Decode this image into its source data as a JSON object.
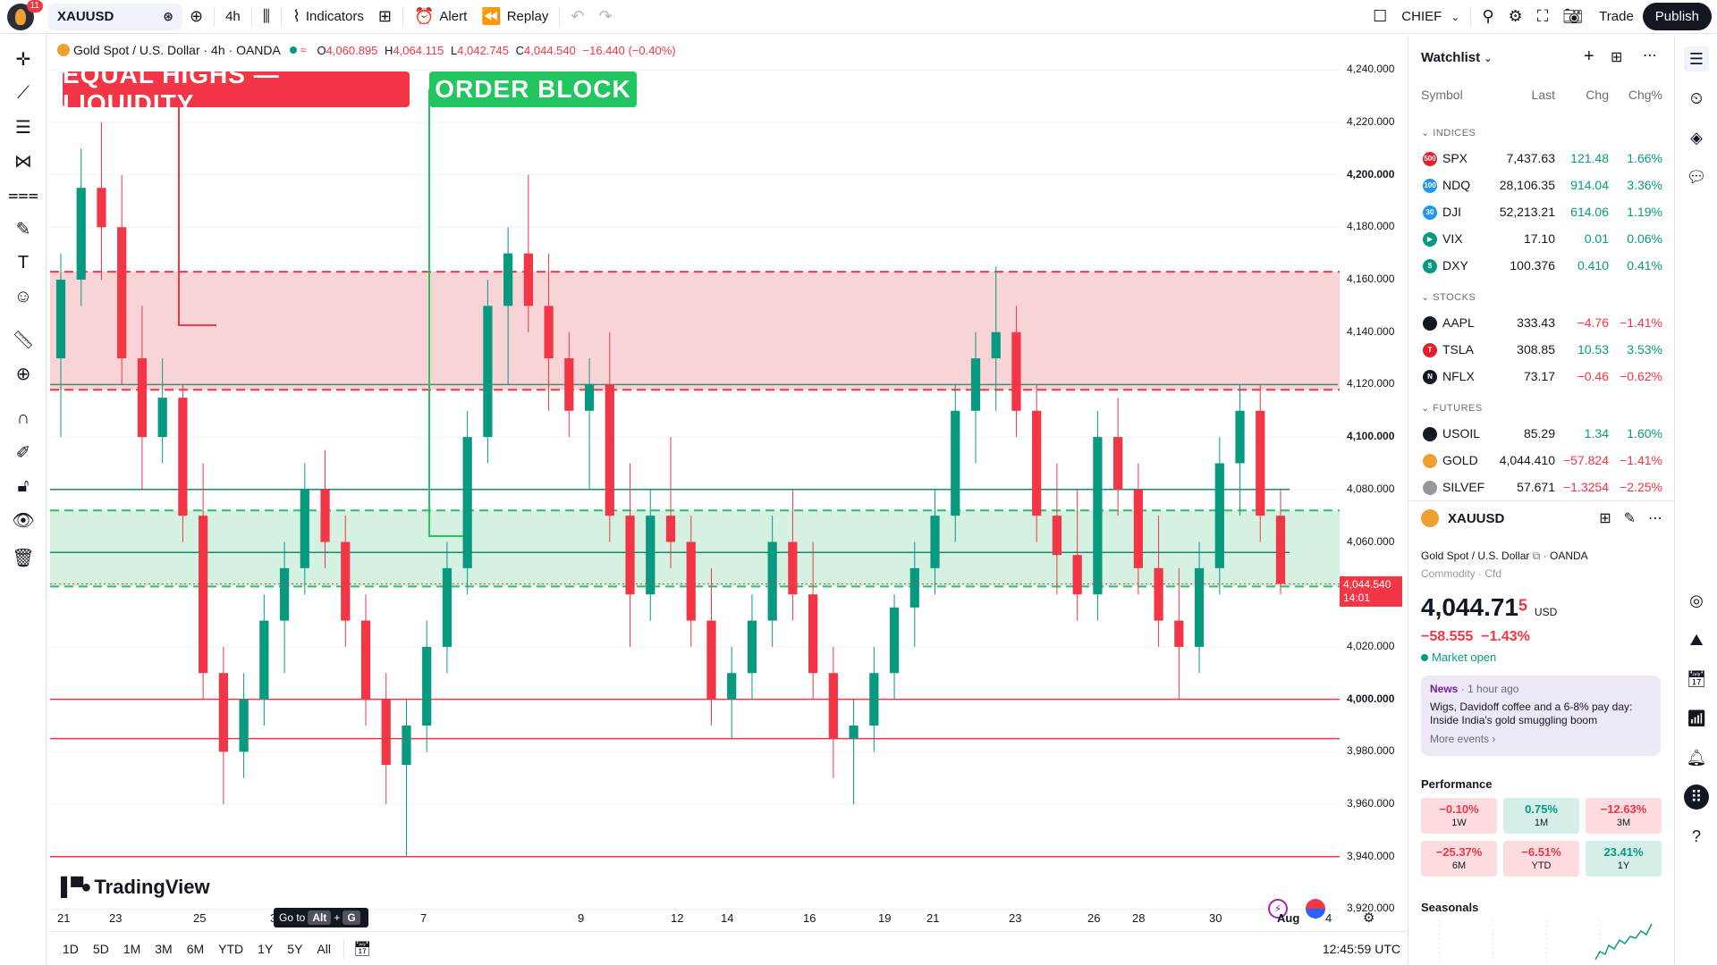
{
  "topbar": {
    "avatar_badge": "11",
    "symbol": "XAUUSD",
    "interval": "4h",
    "indicators": "Indicators",
    "alert": "Alert",
    "replay": "Replay",
    "layout_name": "CHIEF",
    "trade": "Trade",
    "publish": "Publish"
  },
  "legend": {
    "name": "Gold Spot / U.S. Dollar · 4h · OANDA",
    "o_label": "O",
    "o": "4,060.895",
    "h_label": "H",
    "h": "4,064.115",
    "l_label": "L",
    "l": "4,042.745",
    "c_label": "C",
    "c": "4,044.540",
    "change": "−16.440 (−0.40%)"
  },
  "annotations": {
    "equal_highs": "EQUAL HIGHS — LIQUIDITY",
    "order_block": "ORDER BLOCK"
  },
  "price_axis": {
    "ticks": [
      {
        "v": 4240,
        "t": "4,240.000",
        "b": false
      },
      {
        "v": 4220,
        "t": "4,220.000",
        "b": false
      },
      {
        "v": 4200,
        "t": "4,200.000",
        "b": true
      },
      {
        "v": 4180,
        "t": "4,180.000",
        "b": false
      },
      {
        "v": 4160,
        "t": "4,160.000",
        "b": false
      },
      {
        "v": 4140,
        "t": "4,140.000",
        "b": false
      },
      {
        "v": 4120,
        "t": "4,120.000",
        "b": false
      },
      {
        "v": 4100,
        "t": "4,100.000",
        "b": true
      },
      {
        "v": 4080,
        "t": "4,080.000",
        "b": false
      },
      {
        "v": 4060,
        "t": "4,060.000",
        "b": false
      },
      {
        "v": 4020,
        "t": "4,020.000",
        "b": false
      },
      {
        "v": 4000,
        "t": "4,000.000",
        "b": true
      },
      {
        "v": 3980,
        "t": "3,980.000",
        "b": false
      },
      {
        "v": 3960,
        "t": "3,960.000",
        "b": false
      },
      {
        "v": 3940,
        "t": "3,940.000",
        "b": false
      },
      {
        "v": 3920,
        "t": "3,920.000",
        "b": false
      }
    ],
    "current_price": "4,044.540",
    "countdown": "14:01"
  },
  "time_axis": {
    "ticks": [
      "21",
      "23",
      "25",
      "3",
      "7",
      "9",
      "12",
      "14",
      "16",
      "19",
      "21",
      "23",
      "26",
      "28",
      "30",
      "Aug",
      "4"
    ],
    "goto_label": "Go to",
    "goto_key1": "Alt",
    "goto_plus": "+",
    "goto_key2": "G"
  },
  "branding": "TradingView",
  "bottombar": {
    "ranges": [
      "1D",
      "5D",
      "1M",
      "3M",
      "6M",
      "YTD",
      "1Y",
      "5Y",
      "All"
    ],
    "clock": "12:45:59 UTC"
  },
  "watchlist": {
    "title": "Watchlist",
    "columns": {
      "symbol": "Symbol",
      "last": "Last",
      "chg": "Chg",
      "pct": "Chg%"
    },
    "sections": [
      {
        "name": "INDICES",
        "rows": [
          {
            "sym": "SPX",
            "icon": "500",
            "color": "#e0202c",
            "last": "7,437.63",
            "chg": "121.48",
            "pct": "1.66%",
            "up": true
          },
          {
            "sym": "NDQ",
            "icon": "100",
            "color": "#2196f3",
            "last": "28,106.35",
            "chg": "914.04",
            "pct": "3.36%",
            "up": true
          },
          {
            "sym": "DJI",
            "icon": "30",
            "color": "#2196f3",
            "last": "52,213.21",
            "chg": "614.06",
            "pct": "1.19%",
            "up": true
          },
          {
            "sym": "VIX",
            "icon": "▶",
            "color": "#089981",
            "last": "17.10",
            "chg": "0.01",
            "pct": "0.06%",
            "up": true
          },
          {
            "sym": "DXY",
            "icon": "$",
            "color": "#089981",
            "last": "100.376",
            "chg": "0.410",
            "pct": "0.41%",
            "up": true
          }
        ]
      },
      {
        "name": "STOCKS",
        "rows": [
          {
            "sym": "AAPL",
            "icon": "",
            "color": "#131722",
            "last": "333.43",
            "chg": "−4.76",
            "pct": "−1.41%",
            "up": false
          },
          {
            "sym": "TSLA",
            "icon": "T",
            "color": "#e0202c",
            "last": "308.85",
            "chg": "10.53",
            "pct": "3.53%",
            "up": true
          },
          {
            "sym": "NFLX",
            "icon": "N",
            "color": "#131722",
            "last": "73.17",
            "chg": "−0.46",
            "pct": "−0.62%",
            "up": false
          }
        ]
      },
      {
        "name": "FUTURES",
        "rows": [
          {
            "sym": "USOIL",
            "icon": "",
            "color": "#131722",
            "last": "85.29",
            "chg": "1.34",
            "pct": "1.60%",
            "up": true
          },
          {
            "sym": "GOLD",
            "icon": "",
            "color": "#f0a030",
            "last": "4,044.410",
            "chg": "−57.824",
            "pct": "−1.41%",
            "up": false
          },
          {
            "sym": "SILVEF",
            "icon": "",
            "color": "#9598a1",
            "last": "57.671",
            "chg": "−1.3254",
            "pct": "−2.25%",
            "up": false
          }
        ]
      }
    ]
  },
  "details": {
    "symbol": "XAUUSD",
    "description": "Gold Spot / U.S. Dollar",
    "exchange": "OANDA",
    "category": "Commodity · Cfd",
    "price_main": "4,044.71",
    "price_sup": "5",
    "currency": "USD",
    "change": "−58.555",
    "change_pct": "−1.43%",
    "status": "Market open",
    "news_label": "News",
    "news_time": "1 hour ago",
    "news_text": "Wigs, Davidoff coffee and a 6-8% pay day: Inside India's gold smuggling boom",
    "news_more": "More events",
    "performance_title": "Performance",
    "performance": [
      {
        "v": "−0.10%",
        "l": "1W",
        "neg": true
      },
      {
        "v": "0.75%",
        "l": "1M",
        "neg": false
      },
      {
        "v": "−12.63%",
        "l": "3M",
        "neg": true
      },
      {
        "v": "−25.37%",
        "l": "6M",
        "neg": true
      },
      {
        "v": "−6.51%",
        "l": "YTD",
        "neg": true
      },
      {
        "v": "23.41%",
        "l": "1Y",
        "neg": false
      }
    ],
    "seasonals_title": "Seasonals"
  },
  "colors": {
    "bull": "#089981",
    "bear": "#f23645",
    "supply_zone": "#f8cdd0",
    "demand_zone": "#ccefdd"
  },
  "chart_data": {
    "type": "candlestick",
    "ylim": [
      3913,
      4253
    ],
    "supply_zone": [
      4118,
      4163
    ],
    "demand_zone": [
      4043,
      4072
    ],
    "levels": [
      4120,
      4080,
      4056,
      4000,
      3985,
      3940
    ],
    "candles": [
      [
        4130,
        4170,
        4100,
        4160
      ],
      [
        4160,
        4210,
        4150,
        4195
      ],
      [
        4195,
        4220,
        4160,
        4180
      ],
      [
        4180,
        4200,
        4120,
        4130
      ],
      [
        4130,
        4150,
        4080,
        4100
      ],
      [
        4100,
        4130,
        4090,
        4115
      ],
      [
        4115,
        4120,
        4060,
        4070
      ],
      [
        4070,
        4090,
        4000,
        4010
      ],
      [
        4010,
        4020,
        3960,
        3980
      ],
      [
        3980,
        4010,
        3970,
        4000
      ],
      [
        4000,
        4040,
        3990,
        4030
      ],
      [
        4030,
        4060,
        4010,
        4050
      ],
      [
        4050,
        4090,
        4040,
        4080
      ],
      [
        4080,
        4095,
        4050,
        4060
      ],
      [
        4060,
        4070,
        4020,
        4030
      ],
      [
        4030,
        4040,
        3990,
        4000
      ],
      [
        4000,
        4010,
        3960,
        3975
      ],
      [
        3975,
        4000,
        3940,
        3990
      ],
      [
        3990,
        4030,
        3980,
        4020
      ],
      [
        4020,
        4060,
        4010,
        4050
      ],
      [
        4050,
        4110,
        4040,
        4100
      ],
      [
        4100,
        4160,
        4090,
        4150
      ],
      [
        4150,
        4180,
        4120,
        4170
      ],
      [
        4170,
        4200,
        4140,
        4150
      ],
      [
        4150,
        4170,
        4110,
        4130
      ],
      [
        4130,
        4140,
        4100,
        4110
      ],
      [
        4110,
        4130,
        4080,
        4120
      ],
      [
        4120,
        4140,
        4060,
        4070
      ],
      [
        4070,
        4090,
        4020,
        4040
      ],
      [
        4040,
        4080,
        4030,
        4070
      ],
      [
        4070,
        4100,
        4050,
        4060
      ],
      [
        4060,
        4070,
        4020,
        4030
      ],
      [
        4030,
        4050,
        3990,
        4000
      ],
      [
        4000,
        4020,
        3985,
        4010
      ],
      [
        4010,
        4040,
        4000,
        4030
      ],
      [
        4030,
        4070,
        4020,
        4060
      ],
      [
        4060,
        4080,
        4030,
        4040
      ],
      [
        4040,
        4060,
        4000,
        4010
      ],
      [
        4010,
        4020,
        3970,
        3985
      ],
      [
        3985,
        4000,
        3960,
        3990
      ],
      [
        3990,
        4020,
        3980,
        4010
      ],
      [
        4010,
        4040,
        4000,
        4035
      ],
      [
        4035,
        4060,
        4020,
        4050
      ],
      [
        4050,
        4080,
        4040,
        4070
      ],
      [
        4070,
        4120,
        4060,
        4110
      ],
      [
        4110,
        4140,
        4090,
        4130
      ],
      [
        4130,
        4165,
        4110,
        4140
      ],
      [
        4140,
        4150,
        4100,
        4110
      ],
      [
        4110,
        4120,
        4060,
        4070
      ],
      [
        4070,
        4090,
        4040,
        4055
      ],
      [
        4055,
        4080,
        4030,
        4040
      ],
      [
        4040,
        4110,
        4030,
        4100
      ],
      [
        4100,
        4115,
        4070,
        4080
      ],
      [
        4080,
        4090,
        4040,
        4050
      ],
      [
        4050,
        4070,
        4020,
        4030
      ],
      [
        4030,
        4050,
        4000,
        4020
      ],
      [
        4020,
        4060,
        4010,
        4050
      ],
      [
        4050,
        4100,
        4040,
        4090
      ],
      [
        4090,
        4120,
        4070,
        4110
      ],
      [
        4110,
        4120,
        4060,
        4070
      ],
      [
        4070,
        4080,
        4040,
        4044
      ]
    ]
  }
}
